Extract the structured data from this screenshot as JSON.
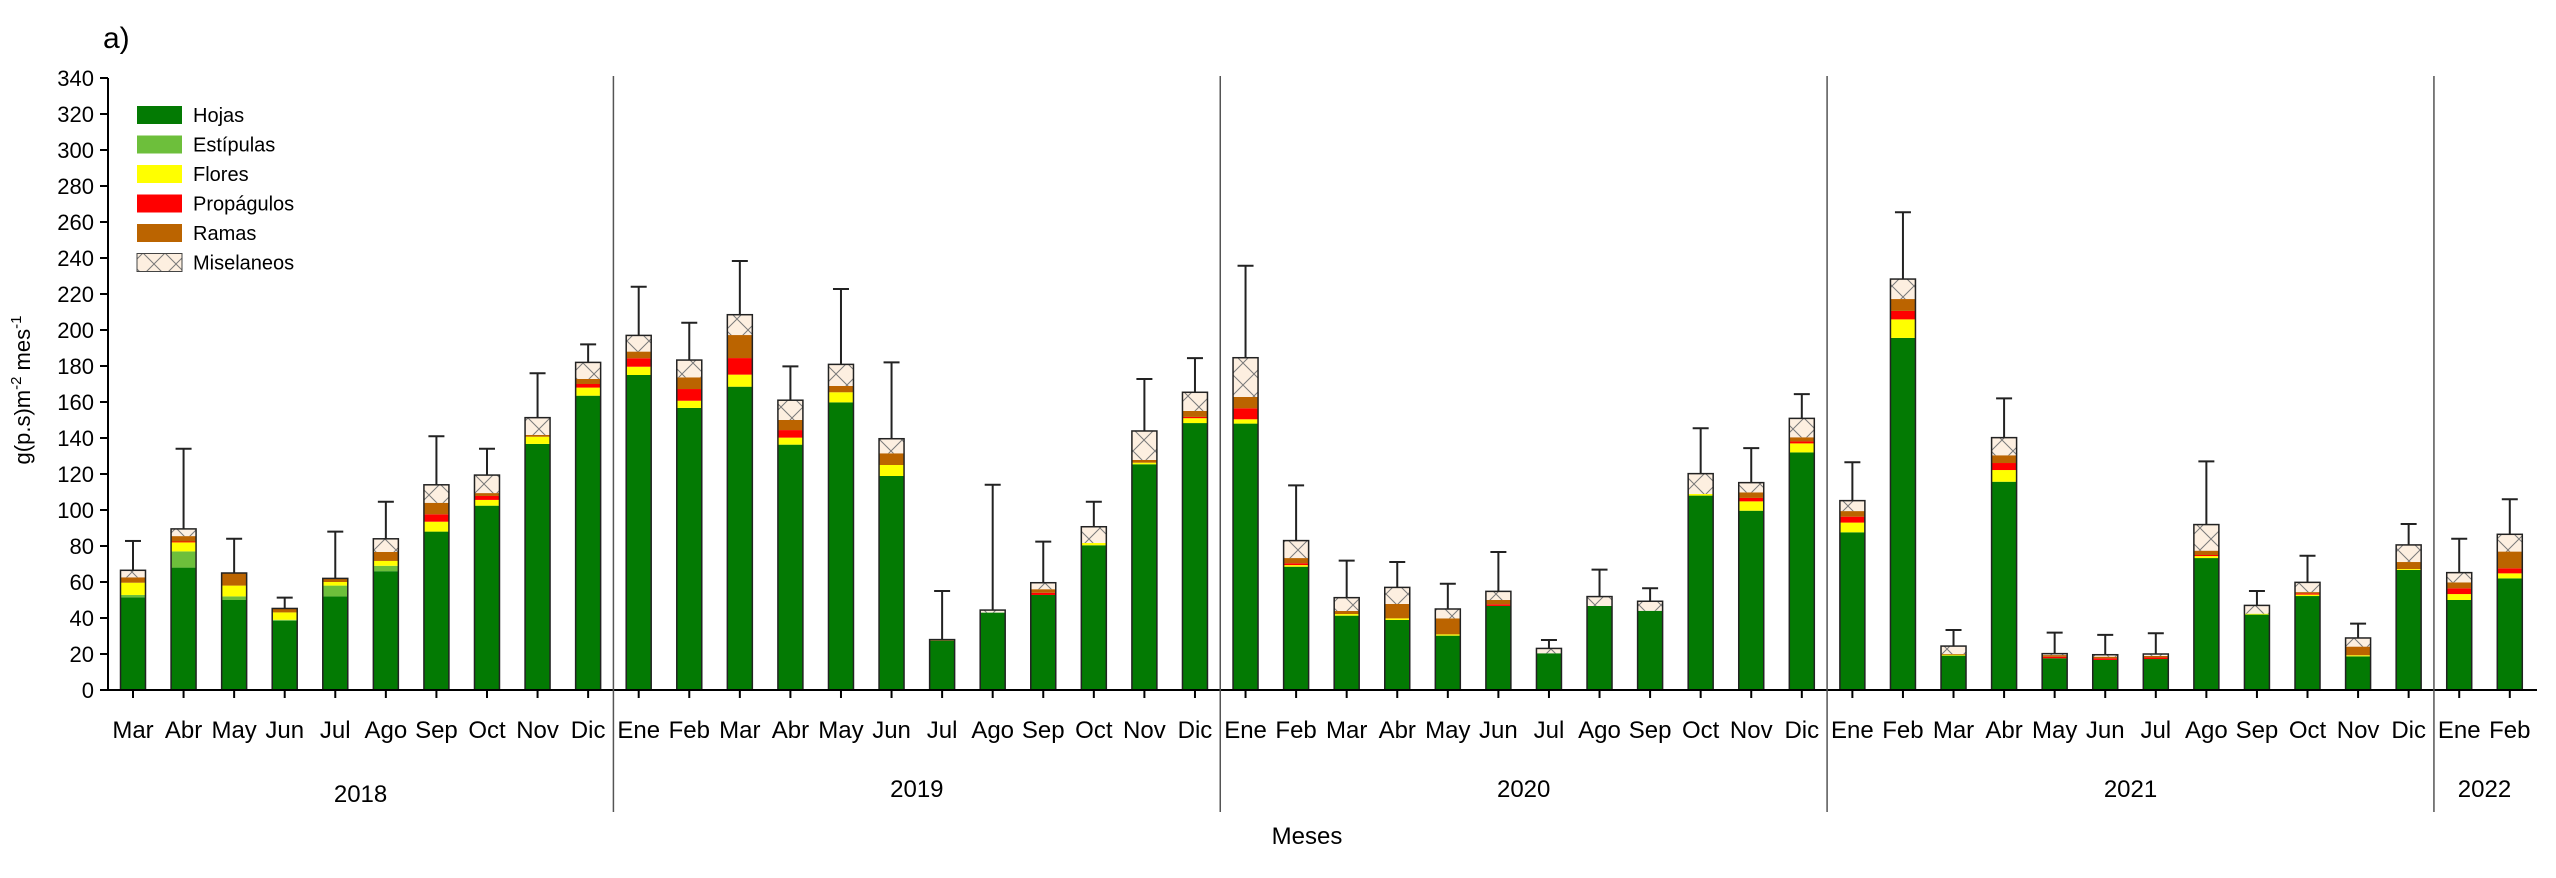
{
  "panel_label": "a)",
  "chart_data": {
    "type": "bar",
    "stacked": true,
    "title": "",
    "xlabel": "Meses",
    "ylabel": "g(p.s)m",
    "ylabel_sup1": "-2",
    "ylabel_mid": " mes",
    "ylabel_sup2": "-1",
    "ylim": [
      0,
      340
    ],
    "yticks": [
      0,
      20,
      40,
      60,
      80,
      100,
      120,
      140,
      160,
      180,
      200,
      220,
      240,
      260,
      280,
      300,
      320,
      340
    ],
    "grid": false,
    "legend_position": "top-left",
    "years": [
      {
        "label": "2018",
        "months": 10
      },
      {
        "label": "2019",
        "months": 12
      },
      {
        "label": "2020",
        "months": 12
      },
      {
        "label": "2021",
        "months": 12
      },
      {
        "label": "2022",
        "months": 2
      }
    ],
    "categories": [
      "Mar",
      "Abr",
      "May",
      "Jun",
      "Jul",
      "Ago",
      "Sep",
      "Oct",
      "Nov",
      "Dic",
      "Ene",
      "Feb",
      "Mar",
      "Abr",
      "May",
      "Jun",
      "Jul",
      "Ago",
      "Sep",
      "Oct",
      "Nov",
      "Dic",
      "Ene",
      "Feb",
      "Mar",
      "Abr",
      "May",
      "Jun",
      "Jul",
      "Ago",
      "Sep",
      "Oct",
      "Nov",
      "Dic",
      "Ene",
      "Feb",
      "Mar",
      "Abr",
      "May",
      "Jun",
      "Jul",
      "Ago",
      "Sep",
      "Oct",
      "Nov",
      "Dic",
      "Ene",
      "Feb"
    ],
    "series": [
      {
        "name": "Hojas",
        "color": "#037a03",
        "pattern": "solid",
        "values": [
          51.5,
          68,
          50,
          38.5,
          52,
          66,
          88,
          102.4,
          136.7,
          163.5,
          175,
          156.7,
          168.5,
          136.3,
          159.8,
          118.9,
          27.4,
          43,
          52.8,
          80.4,
          125.4,
          148.3,
          148,
          68.5,
          41.3,
          38.9,
          30.2,
          46.7,
          20.4,
          46.7,
          44,
          108,
          99.6,
          132,
          87.6,
          195.6,
          19.1,
          115.7,
          17.6,
          16.7,
          17.2,
          73.3,
          41.9,
          52.2,
          18.7,
          66.7,
          50,
          62
        ]
      },
      {
        "name": "Estípulas",
        "color": "#6dbf3b",
        "pattern": "solid",
        "values": [
          1.3,
          9,
          2,
          0.5,
          6,
          3,
          0,
          0,
          0,
          0,
          0,
          0,
          0,
          0,
          0,
          0,
          0,
          0,
          0,
          0,
          0,
          0,
          0,
          0,
          0,
          0,
          0,
          0,
          0,
          0,
          0,
          0,
          0,
          0,
          0,
          0,
          0,
          0,
          0,
          0,
          0,
          0,
          0,
          0,
          0,
          0,
          0,
          0
        ]
      },
      {
        "name": "Flores",
        "color": "#ffff00",
        "pattern": "solid",
        "values": [
          6.8,
          5,
          6,
          4.1,
          2,
          2.7,
          5.5,
          3.2,
          4,
          4.5,
          4.6,
          4,
          6.7,
          3.9,
          5.6,
          6.1,
          0,
          0,
          0,
          1.3,
          0.9,
          2.7,
          2.4,
          0.9,
          0.9,
          0.9,
          0.7,
          0,
          0,
          0,
          0,
          0.9,
          5.2,
          5,
          5.4,
          10.3,
          0.5,
          6.5,
          0,
          0,
          0,
          1.1,
          0.5,
          0.8,
          0.6,
          0.5,
          3.3,
          2.8
        ]
      },
      {
        "name": "Propágulos",
        "color": "#ff0000",
        "pattern": "solid",
        "values": [
          0,
          0.5,
          0,
          0,
          0,
          0,
          4.1,
          2.2,
          0,
          2,
          4.7,
          6.5,
          9.2,
          4.2,
          0,
          0,
          0,
          0,
          1.2,
          0,
          0,
          0.7,
          6.1,
          1,
          0,
          0,
          0,
          0.9,
          0,
          0,
          0,
          0,
          1.9,
          1.1,
          3.3,
          4.7,
          0,
          3.9,
          0.9,
          0.9,
          0.9,
          0.6,
          0,
          0.7,
          0,
          0,
          3.2,
          2.8
        ]
      },
      {
        "name": "Ramas",
        "color": "#bb6400",
        "pattern": "solid",
        "values": [
          3,
          3,
          7,
          2.2,
          2,
          5,
          6.4,
          1.6,
          1,
          2.8,
          3.7,
          6.5,
          12.8,
          5.6,
          3.5,
          6.5,
          0.6,
          0,
          2,
          0,
          1.5,
          3.3,
          6.3,
          2.9,
          1.7,
          8,
          8.9,
          2.4,
          0,
          0,
          0,
          0,
          3.1,
          2.3,
          3.1,
          6.6,
          0.4,
          4.3,
          0.9,
          0.9,
          0.8,
          2.4,
          0,
          0.7,
          4.8,
          3.9,
          3.3,
          9.3
        ]
      },
      {
        "name": "Miselaneos",
        "color": "#fdefe0",
        "pattern": "crosshatch",
        "values": [
          3.9,
          4,
          0,
          0,
          0,
          7.3,
          10,
          10,
          9.6,
          9.2,
          9,
          9.6,
          11.3,
          11,
          12,
          8.1,
          0,
          1.4,
          3.6,
          9,
          16.1,
          10.4,
          21.8,
          9.7,
          7.4,
          9.2,
          5.2,
          4.8,
          2.7,
          5.2,
          5.3,
          11.3,
          5.4,
          10.5,
          5.8,
          11.1,
          4.4,
          9.8,
          0.8,
          1.1,
          1.1,
          14.5,
          4.6,
          5.4,
          4.8,
          9.5,
          5.4,
          9.6
        ]
      }
    ],
    "error_top": [
      82.8,
      134,
      84,
      51.3,
      88,
      104.6,
      141,
      134,
      176,
      192,
      224,
      204,
      238.3,
      179.8,
      222.8,
      182,
      55,
      114,
      82.4,
      104.6,
      172.8,
      184.4,
      235.7,
      113.7,
      71.9,
      71.1,
      59,
      76.7,
      27.8,
      66.9,
      56.5,
      145.4,
      134.4,
      164.4,
      126.5,
      265.4,
      33.3,
      162,
      31.9,
      30.6,
      31.5,
      127,
      55,
      74.6,
      36.9,
      92.2,
      84,
      106
    ]
  }
}
